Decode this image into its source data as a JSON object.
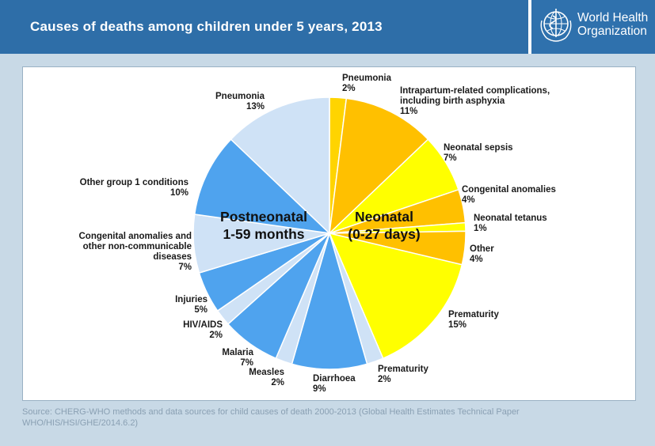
{
  "header": {
    "title": "Causes of deaths among children under 5 years, 2013",
    "logo_line1": "World Health",
    "logo_line2": "Organization"
  },
  "colors": {
    "header_bg": "#2e6ea8",
    "postneonatal_dark": "#4fa3ee",
    "postneonatal_light": "#cfe2f6",
    "neonatal_orange": "#ffc000",
    "neonatal_yellow": "#ffff00",
    "divider": "#ffffff"
  },
  "chart_data": {
    "type": "pie",
    "groups": [
      {
        "name_line1": "Neonatal",
        "name_line2": "(0-27 days)"
      },
      {
        "name_line1": "Postneonatal",
        "name_line2": "1-59 months"
      }
    ],
    "slices": [
      {
        "group": "Neonatal",
        "label": [
          "Pneumonia"
        ],
        "value": 2,
        "value_label": "2%",
        "color": "#ffd400"
      },
      {
        "group": "Neonatal",
        "label": [
          "Intrapartum-related complications,",
          "including birth asphyxia"
        ],
        "value": 11,
        "value_label": "11%",
        "color": "#ffc000"
      },
      {
        "group": "Neonatal",
        "label": [
          "Neonatal sepsis"
        ],
        "value": 7,
        "value_label": "7%",
        "color": "#ffff00"
      },
      {
        "group": "Neonatal",
        "label": [
          "Congenital anomalies"
        ],
        "value": 4,
        "value_label": "4%",
        "color": "#ffc000"
      },
      {
        "group": "Neonatal",
        "label": [
          "Neonatal tetanus"
        ],
        "value": 1,
        "value_label": "1%",
        "color": "#ffff00"
      },
      {
        "group": "Neonatal",
        "label": [
          "Other"
        ],
        "value": 4,
        "value_label": "4%",
        "color": "#ffc000"
      },
      {
        "group": "Neonatal",
        "label": [
          "Prematurity"
        ],
        "value": 15,
        "value_label": "15%",
        "color": "#ffff00"
      },
      {
        "group": "Postneonatal",
        "label": [
          "Prematurity"
        ],
        "value": 2,
        "value_label": "2%",
        "color": "#cfe2f6"
      },
      {
        "group": "Postneonatal",
        "label": [
          "Diarrhoea"
        ],
        "value": 9,
        "value_label": "9%",
        "color": "#4fa3ee"
      },
      {
        "group": "Postneonatal",
        "label": [
          "Measles"
        ],
        "value": 2,
        "value_label": "2%",
        "color": "#cfe2f6"
      },
      {
        "group": "Postneonatal",
        "label": [
          "Malaria"
        ],
        "value": 7,
        "value_label": "7%",
        "color": "#4fa3ee"
      },
      {
        "group": "Postneonatal",
        "label": [
          "HIV/AIDS"
        ],
        "value": 2,
        "value_label": "2%",
        "color": "#cfe2f6"
      },
      {
        "group": "Postneonatal",
        "label": [
          "Injuries"
        ],
        "value": 5,
        "value_label": "5%",
        "color": "#4fa3ee"
      },
      {
        "group": "Postneonatal",
        "label": [
          "Congenital anomalies and",
          "other non-communicable",
          "diseases"
        ],
        "value": 7,
        "value_label": "7%",
        "color": "#cfe2f6"
      },
      {
        "group": "Postneonatal",
        "label": [
          "Other group 1 conditions"
        ],
        "value": 10,
        "value_label": "10%",
        "color": "#4fa3ee"
      },
      {
        "group": "Postneonatal",
        "label": [
          "Pneumonia"
        ],
        "value": 13,
        "value_label": "13%",
        "color": "#cfe2f6"
      }
    ],
    "start": "12 o'clock",
    "direction": "clockwise"
  },
  "source": {
    "line1": "Source: CHERG-WHO methods and data sources for child causes of death 2000-2013 (Global Health Estimates Technical Paper",
    "line2": "WHO/HIS/HSI/GHE/2014.6.2)"
  }
}
